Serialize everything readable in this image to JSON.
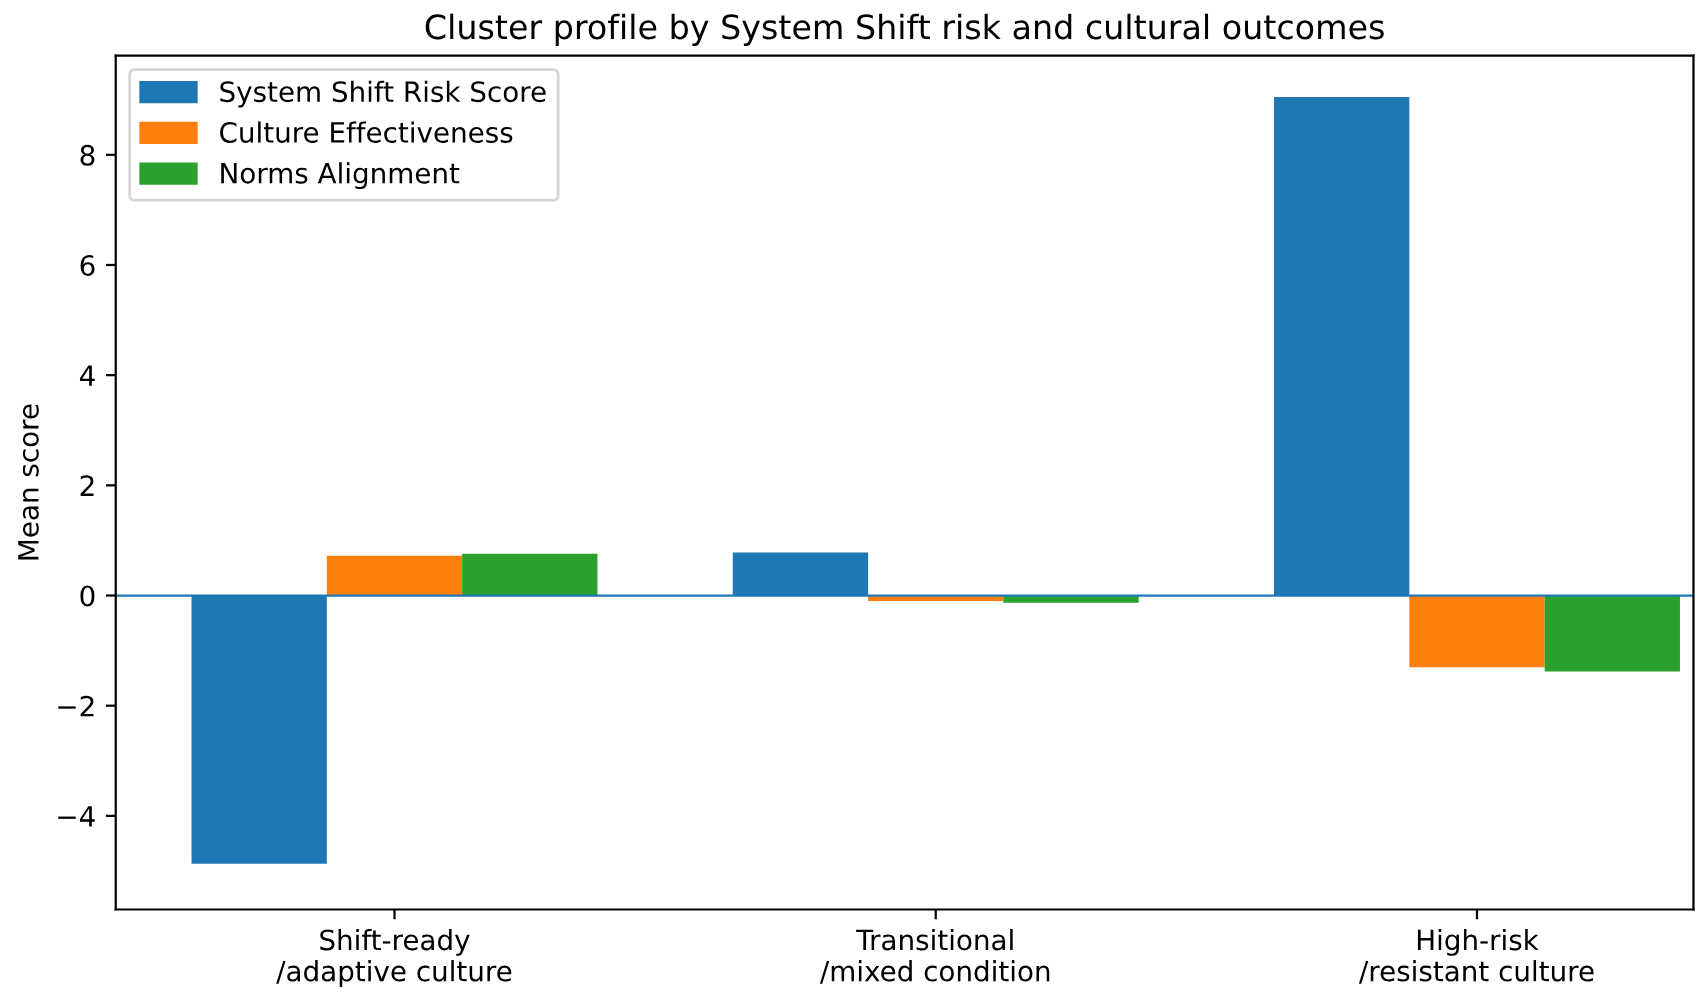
{
  "chart_data": {
    "type": "bar",
    "title": "Cluster profile by System Shift risk and cultural outcomes",
    "ylabel": "Mean score",
    "categories": [
      "Shift-ready\n/adaptive culture",
      "Transitional\n/mixed condition",
      "High-risk\n/resistant culture"
    ],
    "series": [
      {
        "name": "System Shift Risk Score",
        "color": "#1f77b4",
        "values": [
          -4.87,
          0.78,
          9.05
        ]
      },
      {
        "name": "Culture Effectiveness",
        "color": "#ff7f0e",
        "values": [
          0.72,
          -0.1,
          -1.3
        ]
      },
      {
        "name": "Norms Alignment",
        "color": "#2ca02c",
        "values": [
          0.76,
          -0.13,
          -1.38
        ]
      }
    ],
    "ylim": [
      -5.7,
      9.8
    ],
    "yticks": [
      {
        "value": -4,
        "label": "−4"
      },
      {
        "value": -2,
        "label": "−2"
      },
      0,
      2,
      4,
      6,
      8
    ],
    "ref_lines": [
      {
        "axis": "y",
        "value": 0,
        "color": "#1f77b4",
        "line_style": "solid"
      }
    ],
    "legend": "top left",
    "grid": false
  }
}
